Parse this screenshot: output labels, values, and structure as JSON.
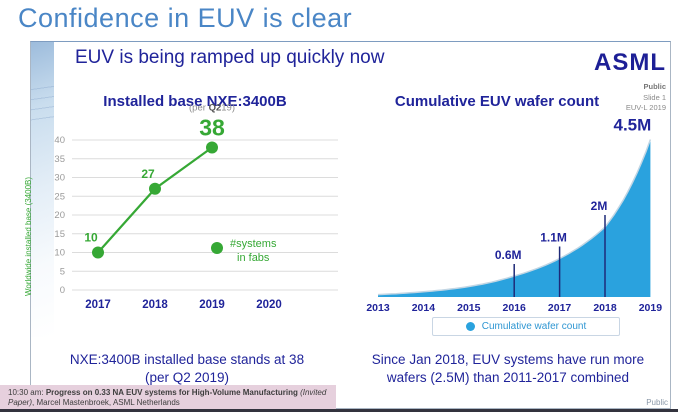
{
  "page": {
    "title": "Confidence in EUV is clear",
    "classification": "Public"
  },
  "slide": {
    "heading": "EUV is being ramped up quickly now",
    "logo_text": "ASML",
    "meta": {
      "classification": "Public",
      "slide_number": "Slide 1",
      "event": "EUV-L 2019"
    }
  },
  "left_panel": {
    "caption": "NXE:3400B installed base stands at 38\n(per Q2 2019)"
  },
  "right_panel": {
    "caption": "Since Jan 2018, EUV systems have run more\nwafers (2.5M) than 2011-2017 combined"
  },
  "footer": {
    "agenda": {
      "time": "10:30 am: ",
      "paper_title": "Progress on 0.33 NA EUV systems for High-Volume Manufacturing",
      "paper_type": " (Invited Paper)",
      "authors": ", Marcel Mastenbroek, ASML Netherlands"
    }
  },
  "colors": {
    "navy": "#20249a",
    "steel_blue": "#4a86c6",
    "green": "#36a835",
    "area_blue": "#2aa2de",
    "pink_bar": "#e6d0dd"
  },
  "chart_data": [
    {
      "type": "line",
      "title": "Installed base NXE:3400B",
      "ylabel": "Worldwide installed base (3400B)",
      "categories": [
        "2017",
        "2018",
        "2019",
        "2020"
      ],
      "values": [
        10,
        27,
        38,
        null
      ],
      "point_labels": [
        "10",
        "27",
        "38"
      ],
      "annotation": "(per Q219)",
      "annotation_parts": [
        "(per ",
        "Q2",
        "19)"
      ],
      "legend": "#systems\nin fabs",
      "ylim": [
        0,
        40
      ],
      "ytick_step": 5,
      "grid": true,
      "legend_position": "inside-right",
      "line_color": "#36a835"
    },
    {
      "type": "area",
      "title": "Cumulative EUV wafer count",
      "x": [
        "2013",
        "2014",
        "2015",
        "2016",
        "2017",
        "2018",
        "2019"
      ],
      "values_millions": [
        0.07,
        0.15,
        0.3,
        0.6,
        1.1,
        2.0,
        4.5
      ],
      "markers": [
        {
          "x": "2016",
          "label": "0.6M"
        },
        {
          "x": "2017",
          "label": "1.1M"
        },
        {
          "x": "2018",
          "label": "2M"
        }
      ],
      "peak_label": "4.5M",
      "legend": "Cumulative wafer count",
      "legend_position": "below",
      "grid": false,
      "fill_color": "#2aa2de"
    }
  ]
}
